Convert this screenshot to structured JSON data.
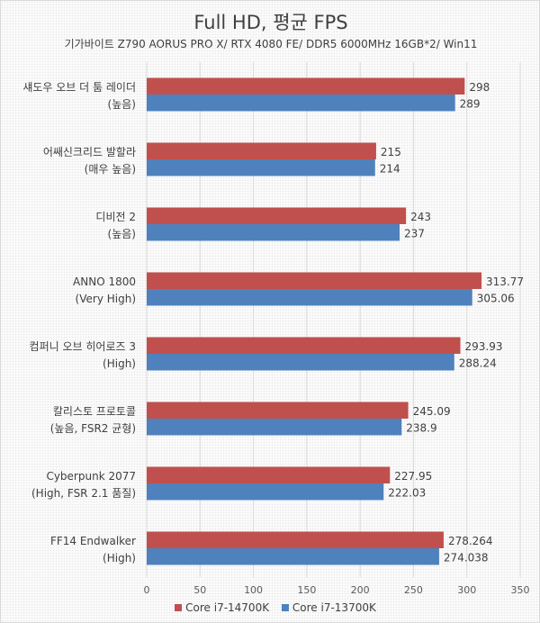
{
  "chart_data": {
    "type": "bar",
    "orientation": "horizontal",
    "title": "Full HD, 평균 FPS",
    "subtitle": "기가바이트 Z790 AORUS PRO X/ RTX 4080 FE/ DDR5 6000MHz 16GB*2/ Win11",
    "categories": [
      [
        "섀도우 오브 더 툼 레이더",
        "(높음)"
      ],
      [
        "어쌔신크리드 발할라",
        "(매우 높음)"
      ],
      [
        "디비전 2",
        "(높음)"
      ],
      [
        "ANNO 1800",
        "(Very High)"
      ],
      [
        "컴퍼니 오브 히어로즈 3",
        "(High)"
      ],
      [
        "칼리스토 프로토콜",
        "(높음, FSR2 균형)"
      ],
      [
        "Cyberpunk 2077",
        "(High, FSR 2.1 품질)"
      ],
      [
        "FF14 Endwalker",
        "(High)"
      ]
    ],
    "series": [
      {
        "name": "Core i7-14700K",
        "color": "#c0504d",
        "values": [
          298,
          215,
          243,
          313.77,
          293.93,
          245.09,
          227.95,
          278.264
        ],
        "labels": [
          "298",
          "215",
          "243",
          "313.77",
          "293.93",
          "245.09",
          "227.95",
          "278.264"
        ]
      },
      {
        "name": "Core i7-13700K",
        "color": "#4f81bd",
        "values": [
          289,
          214,
          237,
          305.06,
          288.24,
          238.9,
          222.03,
          274.038
        ],
        "labels": [
          "289",
          "214",
          "237",
          "305.06",
          "288.24",
          "238.9",
          "222.03",
          "274.038"
        ]
      }
    ],
    "xlim": [
      0,
      350
    ],
    "xticks": [
      "0",
      "50",
      "100",
      "150",
      "200",
      "250",
      "300",
      "350"
    ],
    "grid": true,
    "legend": "bottom"
  }
}
